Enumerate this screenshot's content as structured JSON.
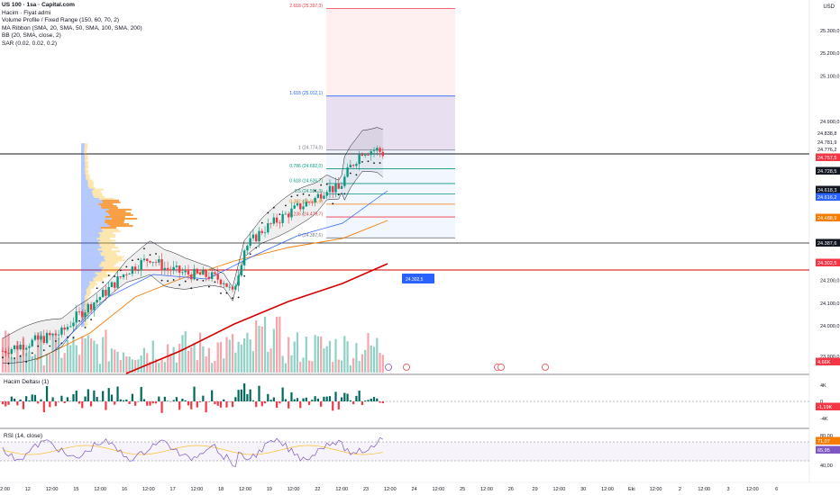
{
  "legend": {
    "title": "US 100 · 1sa · Capital.com",
    "lines": [
      "Hacim · Fiyat admi",
      "Volume Profile / Fixed Range (150, 60, 70, 2)",
      "MA Ribbon (SMA, 20, SMA, 50, SMA, 100, SMA, 200)",
      "BB (20, SMA, close, 2)",
      "SAR (0.02, 0.02, 0.2)"
    ]
  },
  "currency": "USD",
  "price_axis": {
    "ticks": [
      "25.300,0",
      "25.200,0",
      "25.100,0",
      "24.900,0",
      "24.200,0",
      "24.100,0",
      "24.000,0",
      "23.900,0"
    ],
    "badges": [
      {
        "text": "24.838,8",
        "color": "#ffffff",
        "text_color": "#131722"
      },
      {
        "text": "24.781,9",
        "color": "#ffffff",
        "text_color": "#131722"
      },
      {
        "text": "24.776,2",
        "color": "#ffffff",
        "text_color": "#131722"
      },
      {
        "text": "24.757,5",
        "color": "#f23645",
        "text_color": "#ffffff"
      },
      {
        "text": "24.728,5",
        "color": "#131722",
        "text_color": "#ffffff"
      },
      {
        "text": "24.618,3",
        "color": "#131722",
        "text_color": "#ffffff"
      },
      {
        "text": "24.616,2",
        "color": "#2962ff",
        "text_color": "#ffffff"
      },
      {
        "text": "24.488,9",
        "color": "#f57c00",
        "text_color": "#ffffff"
      },
      {
        "text": "24.387,6",
        "color": "#131722",
        "text_color": "#ffffff"
      },
      {
        "text": "24.302,5",
        "color": "#f23645",
        "text_color": "#ffffff"
      },
      {
        "text": "4,66K",
        "color": "#f23645",
        "text_color": "#ffffff"
      }
    ]
  },
  "fib_levels": [
    {
      "label": "2.618 (25.397,0)",
      "color": "#f23645"
    },
    {
      "label": "1.618 (25.012,1)",
      "color": "#2962ff"
    },
    {
      "label": "1 (24.774,0)",
      "color": "#787b86"
    },
    {
      "label": "0.786 (24.692,0)",
      "color": "#089981"
    },
    {
      "label": "0.618 (24.626,7)",
      "color": "#089981"
    },
    {
      "label": "0.5 (24.581,3)",
      "color": "#089981"
    },
    {
      "label": "0.382 (24.535,9)",
      "color": "#f57c00"
    },
    {
      "label": "0.236 (24.479,7)",
      "color": "#f23645"
    },
    {
      "label": "0 (24.387,6)",
      "color": "#787b86"
    }
  ],
  "alert_label": "24.302,5",
  "time_axis": [
    "12:00",
    "12",
    "12:00",
    "15",
    "12:00",
    "16",
    "12:00",
    "17",
    "12:00",
    "18",
    "12:00",
    "19",
    "12:00",
    "22",
    "12:00",
    "23",
    "12:00",
    "24",
    "12:00",
    "25",
    "12:00",
    "26",
    "29",
    "12:00",
    "30",
    "12:00",
    "Eki",
    "12:00",
    "2",
    "12:00",
    "3",
    "12:00",
    "6"
  ],
  "delta_pane": {
    "title": "Hacim Deltası (1)",
    "ticks": [
      "4K",
      "0",
      "-4K"
    ],
    "value_badge": "-1,19K"
  },
  "rsi_pane": {
    "title": "RSI (14, close)",
    "ticks": [
      "80,00",
      "40,00"
    ],
    "badges": [
      {
        "text": "71,07",
        "color": "#f57c00"
      },
      {
        "text": "65,95",
        "color": "#7e57c2"
      }
    ]
  },
  "colors": {
    "up": "#089981",
    "down": "#f23645",
    "sma_blue": "#2962ff",
    "sma_orange": "#f57c00",
    "sma_red": "#d50000",
    "rsi_line": "#7e57c2"
  }
}
